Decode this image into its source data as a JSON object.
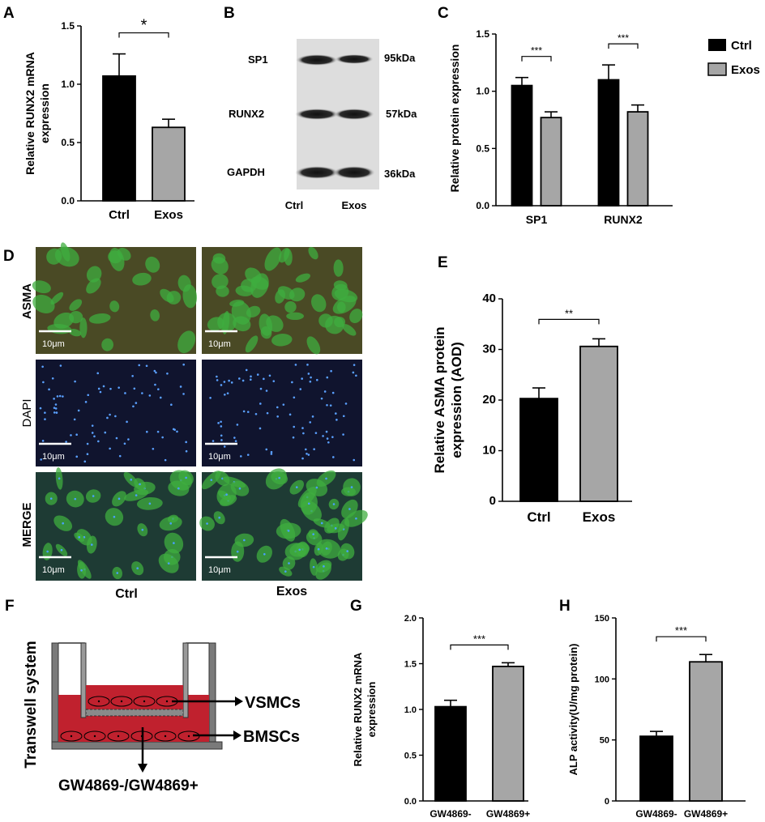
{
  "colors": {
    "ctrl": "#000000",
    "exos": "#a6a6a6",
    "grid_green": "#3fae3f",
    "dapi_bg": "#10142e"
  },
  "legend": {
    "ctrl": "Ctrl",
    "exos": "Exos"
  },
  "panels": {
    "A": {
      "letter": "A"
    },
    "B": {
      "letter": "B",
      "bands": [
        {
          "name": "SP1",
          "kda": "95kDa"
        },
        {
          "name": "RUNX2",
          "kda": "57kDa"
        },
        {
          "name": "GAPDH",
          "kda": "36kDa"
        }
      ],
      "lanes": [
        "Ctrl",
        "Exos"
      ]
    },
    "C": {
      "letter": "C"
    },
    "D": {
      "letter": "D",
      "rows": [
        "ASMA",
        "DAPI",
        "MERGE"
      ],
      "cols": [
        "Ctrl",
        "Exos"
      ],
      "scalebar": "10μm"
    },
    "E": {
      "letter": "E"
    },
    "F": {
      "letter": "F",
      "title": "Transwell system",
      "top_label": "VSMCs",
      "bottom_label": "BMSCs",
      "treatment": "GW4869-/GW4869+"
    },
    "G": {
      "letter": "G"
    },
    "H": {
      "letter": "H"
    }
  },
  "chart_data": [
    {
      "panel": "A",
      "type": "bar",
      "categories": [
        "Ctrl",
        "Exos"
      ],
      "values": [
        1.07,
        0.63
      ],
      "errors": [
        0.19,
        0.07
      ],
      "ylabel": "Relative RUNX2 mRNA\nexpression",
      "ylim": [
        0,
        1.5
      ],
      "yticks": [
        "0.0",
        "0.5",
        "1.0",
        "1.5"
      ],
      "significance": "*"
    },
    {
      "panel": "C",
      "type": "bar",
      "categories": [
        "SP1",
        "RUNX2"
      ],
      "series": [
        {
          "name": "Ctrl",
          "values": [
            1.05,
            1.1
          ],
          "errors": [
            0.07,
            0.13
          ]
        },
        {
          "name": "Exos",
          "values": [
            0.77,
            0.82
          ],
          "errors": [
            0.05,
            0.06
          ]
        }
      ],
      "ylabel": "Relative protein expression",
      "ylim": [
        0,
        1.5
      ],
      "yticks": [
        "0.0",
        "0.5",
        "1.0",
        "1.5"
      ],
      "significance": [
        "***",
        "***"
      ]
    },
    {
      "panel": "E",
      "type": "bar",
      "categories": [
        "Ctrl",
        "Exos"
      ],
      "values": [
        20.3,
        30.6
      ],
      "errors": [
        2.1,
        1.5
      ],
      "ylabel": "Relative ASMA protein\nexpression (AOD)",
      "ylim": [
        0,
        40
      ],
      "yticks": [
        "0",
        "10",
        "20",
        "30",
        "40"
      ],
      "significance": "**"
    },
    {
      "panel": "G",
      "type": "bar",
      "categories": [
        "GW4869-",
        "GW4869+"
      ],
      "values": [
        1.03,
        1.47
      ],
      "errors": [
        0.07,
        0.04
      ],
      "ylabel": "Relative RUNX2 mRNA\nexpression",
      "ylim": [
        0,
        2.0
      ],
      "yticks": [
        "0.0",
        "0.5",
        "1.0",
        "1.5",
        "2.0"
      ],
      "significance": "***"
    },
    {
      "panel": "H",
      "type": "bar",
      "categories": [
        "GW4869-",
        "GW4869+"
      ],
      "values": [
        53,
        114
      ],
      "errors": [
        4,
        6
      ],
      "ylabel": "ALP activity(U/mg protein)",
      "ylim": [
        0,
        150
      ],
      "yticks": [
        "0",
        "50",
        "100",
        "150"
      ],
      "significance": "***"
    }
  ]
}
